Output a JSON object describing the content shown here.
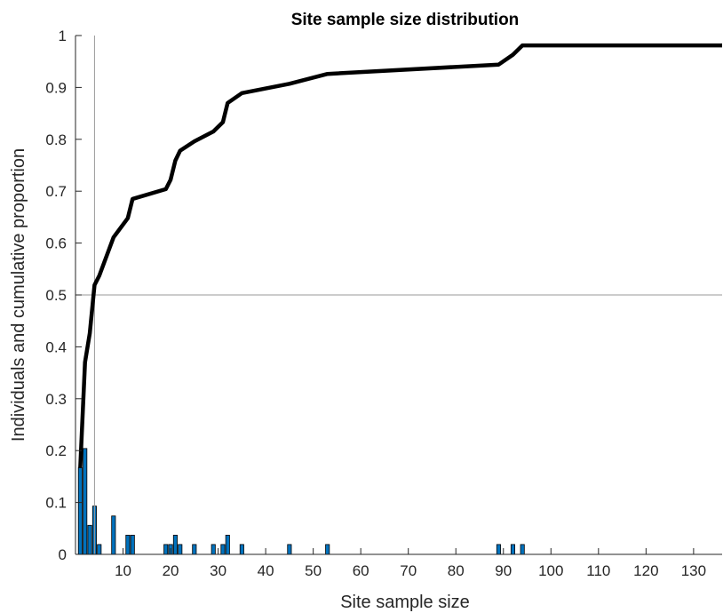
{
  "chart_data": {
    "type": "bar",
    "title": "Site sample size distribution",
    "xlabel": "Site sample size",
    "ylabel": "Individuals and cumulative proportion",
    "xlim": [
      0,
      136
    ],
    "ylim": [
      0,
      1
    ],
    "x_ticks": [
      10,
      20,
      30,
      40,
      50,
      60,
      70,
      80,
      90,
      100,
      110,
      120,
      130
    ],
    "y_ticks": [
      0,
      0.1,
      0.2,
      0.3,
      0.4,
      0.5,
      0.6,
      0.7,
      0.8,
      0.9,
      1
    ],
    "x_tick_labels": [
      "10",
      "20",
      "30",
      "40",
      "50",
      "60",
      "70",
      "80",
      "90",
      "100",
      "110",
      "120",
      "130"
    ],
    "y_tick_labels": [
      "0",
      "0.1",
      "0.2",
      "0.3",
      "0.4",
      "0.5",
      "0.6",
      "0.7",
      "0.8",
      "0.9",
      "1"
    ],
    "grid": false,
    "reference_lines": {
      "x": 4,
      "y": 0.5
    },
    "colors": {
      "bars": "#0072bd",
      "bar_edge": "#000000",
      "cumulative": "#000000",
      "reference": "#999999"
    },
    "series": [
      {
        "kind": "bar",
        "x": [
          1,
          2,
          3,
          4,
          5,
          8,
          11,
          12,
          19,
          20,
          21,
          22,
          25,
          29,
          31,
          32,
          35,
          45,
          53,
          89,
          92,
          94
        ],
        "values": [
          0.167,
          0.204,
          0.056,
          0.093,
          0.019,
          0.074,
          0.037,
          0.037,
          0.019,
          0.019,
          0.037,
          0.019,
          0.019,
          0.019,
          0.019,
          0.037,
          0.019,
          0.019,
          0.019,
          0.019,
          0.019,
          0.019
        ]
      },
      {
        "kind": "line",
        "x": [
          1,
          2,
          3,
          4,
          5,
          8,
          11,
          12,
          19,
          20,
          21,
          22,
          25,
          29,
          31,
          32,
          35,
          45,
          53,
          89,
          92,
          94,
          136
        ],
        "values": [
          0.167,
          0.37,
          0.426,
          0.519,
          0.537,
          0.611,
          0.648,
          0.685,
          0.704,
          0.722,
          0.759,
          0.778,
          0.796,
          0.815,
          0.833,
          0.87,
          0.889,
          0.907,
          0.926,
          0.944,
          0.963,
          0.981,
          0.981
        ]
      }
    ]
  }
}
